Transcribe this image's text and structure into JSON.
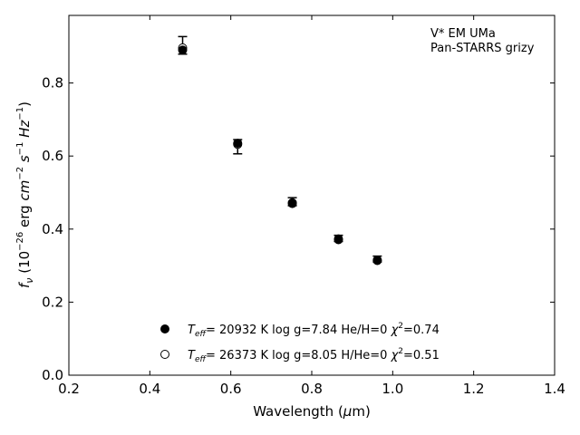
{
  "chart_data": {
    "type": "scatter",
    "title": "",
    "xlabel": "Wavelength (μm)",
    "ylabel": "f_ν (10^−26 erg cm^−2 s^−1 Hz^−1)",
    "xlim": [
      0.2,
      1.4
    ],
    "ylim": [
      0.0,
      0.985
    ],
    "xticks": [
      0.2,
      0.4,
      0.6,
      0.8,
      1.0,
      1.2,
      1.4
    ],
    "yticks": [
      0.0,
      0.2,
      0.4,
      0.6,
      0.8
    ],
    "grid": false,
    "annotation": [
      "V* EM UMa",
      "Pan-STARRS grizy"
    ],
    "legend_placement": "lower-center",
    "series": [
      {
        "name": "T_eff= 20932 K  log g=7.84  He/H=0  χ²=0.74",
        "marker": "filled-circle",
        "x": [
          0.481,
          0.617,
          0.752,
          0.866,
          0.962
        ],
        "y": [
          0.89,
          0.635,
          0.472,
          0.373,
          0.315
        ]
      },
      {
        "name": "T_eff= 26373 K  log g=8.05  H/He=0  χ²=0.51",
        "marker": "open-circle",
        "x": [
          0.481,
          0.617,
          0.752,
          0.866,
          0.962
        ],
        "y": [
          0.896,
          0.632,
          0.47,
          0.371,
          0.314
        ]
      }
    ],
    "observed": {
      "x": [
        0.481,
        0.617,
        0.752,
        0.866,
        0.962
      ],
      "y": [
        0.902,
        0.627,
        0.475,
        0.375,
        0.318
      ],
      "yerr_lo": [
        0.023,
        0.021,
        0.011,
        0.009,
        0.008
      ],
      "yerr_hi": [
        0.025,
        0.018,
        0.011,
        0.008,
        0.008
      ]
    }
  }
}
